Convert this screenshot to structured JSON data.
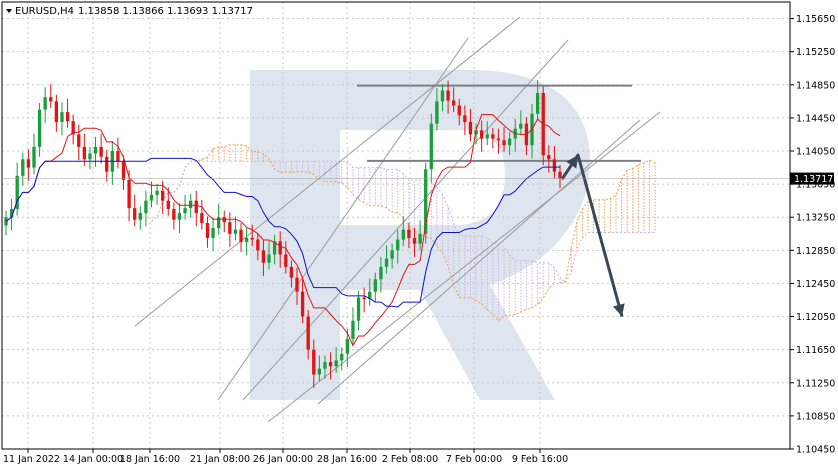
{
  "header": {
    "symbol": "EURUSD,H4",
    "ohlc": "1.13858 1.13866 1.13693 1.13717"
  },
  "chart_data": {
    "type": "candlestick",
    "title": "EURUSD,H4",
    "symbol": "EURUSD",
    "timeframe": "H4",
    "ohlc_last": {
      "open": 1.13858,
      "high": 1.13866,
      "low": 1.13693,
      "close": 1.13717
    },
    "current_price": "1.13717",
    "ylim": [
      1.1045,
      1.1585
    ],
    "y_ticks": [
      "1.15650",
      "1.15250",
      "1.14850",
      "1.14450",
      "1.14050",
      "1.13650",
      "1.13250",
      "1.12850",
      "1.12450",
      "1.12050",
      "1.11650",
      "1.11250",
      "1.10850",
      "1.10450"
    ],
    "x_ticks": [
      "11 Jan 2022",
      "14 Jan 00:00",
      "18 Jan 16:00",
      "21 Jan 08:00",
      "26 Jan 00:00",
      "28 Jan 16:00",
      "2 Feb 08:00",
      "7 Feb 00:00",
      "9 Feb 16:00"
    ],
    "grid": true,
    "indicators": [
      "Ichimoku cloud",
      "Tenkan-sen (red)",
      "Kijun-sen (blue)"
    ],
    "horizontal_levels": [
      1.1484,
      1.1393
    ],
    "close_series": [
      1.1325,
      1.1335,
      1.1375,
      1.1395,
      1.1385,
      1.141,
      1.1455,
      1.147,
      1.1465,
      1.144,
      1.1452,
      1.1441,
      1.1425,
      1.141,
      1.1395,
      1.1402,
      1.141,
      1.1398,
      1.138,
      1.1405,
      1.1392,
      1.137,
      1.1336,
      1.1322,
      1.133,
      1.1345,
      1.1352,
      1.1357,
      1.1345,
      1.1335,
      1.1322,
      1.133,
      1.1336,
      1.1345,
      1.133,
      1.1318,
      1.13,
      1.1312,
      1.1325,
      1.1319,
      1.1305,
      1.131,
      1.1295,
      1.13,
      1.1298,
      1.1285,
      1.127,
      1.128,
      1.1296,
      1.128,
      1.1265,
      1.1252,
      1.1235,
      1.1205,
      1.1165,
      1.1135,
      1.1142,
      1.115,
      1.1145,
      1.1152,
      1.116,
      1.1178,
      1.12,
      1.1228,
      1.1226,
      1.1235,
      1.125,
      1.1265,
      1.1275,
      1.1285,
      1.1298,
      1.131,
      1.13,
      1.1293,
      1.1305,
      1.1383,
      1.1438,
      1.1465,
      1.1478,
      1.1466,
      1.146,
      1.1448,
      1.144,
      1.1425,
      1.143,
      1.142,
      1.1425,
      1.142,
      1.1418,
      1.1412,
      1.142,
      1.1432,
      1.1438,
      1.1412,
      1.145,
      1.1475,
      1.14,
      1.1395,
      1.138,
      1.1372
    ],
    "forecast": {
      "from": 1.1371,
      "swing_high": 1.14,
      "target": 1.1205
    },
    "watermark": "R"
  },
  "colors": {
    "bull": "#1a9e3c",
    "bear": "#e01414",
    "tenkan": "#e01414",
    "kijun": "#1010c8",
    "cloud_bull": "#f0a050",
    "cloud_bear": "#c8b4e0",
    "channel": "#9a9a9a",
    "level": "#7a8088",
    "arrow": "#3a4856",
    "watermark": "#d6deea",
    "price_tag": "#000000"
  }
}
